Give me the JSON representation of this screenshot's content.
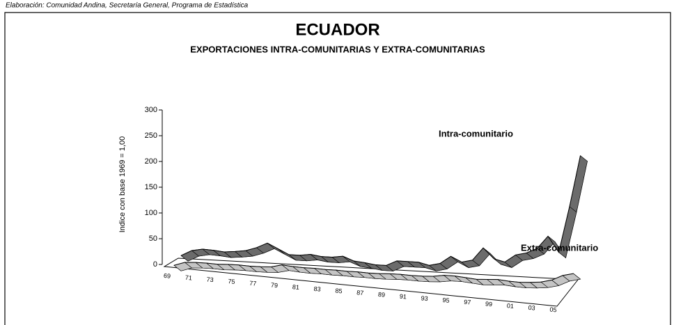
{
  "caption": "Elaboración: Comunidad Andina, Secretaría General, Programa de Estadística",
  "chart_data": {
    "type": "line",
    "title": "ECUADOR",
    "subtitle": "EXPORTACIONES INTRA-COMUNITARIAS  Y EXTRA-COMUNITARIAS",
    "y_label": "Indice con base 1969 = 1,00",
    "categories": [
      "69",
      null,
      "71",
      null,
      "73",
      null,
      "75",
      null,
      "77",
      null,
      "79",
      null,
      "81",
      null,
      "83",
      null,
      "85",
      null,
      "87",
      null,
      "89",
      null,
      "91",
      null,
      "93",
      null,
      "95",
      null,
      "97",
      null,
      "99",
      null,
      "01",
      null,
      "03",
      null,
      "05",
      null
    ],
    "series": [
      {
        "name": "Intra-comunitario",
        "color": "#6b6b6b",
        "values": [
          1,
          12,
          16,
          15,
          13,
          15,
          18,
          25,
          35,
          25,
          15,
          15,
          18,
          15,
          15,
          18,
          10,
          8,
          5,
          5,
          15,
          15,
          15,
          10,
          15,
          30,
          20,
          25,
          50,
          30,
          25,
          40,
          45,
          55,
          80,
          50,
          140,
          240
        ]
      },
      {
        "name": "Extra-comunitario",
        "color": "#c4c4c4",
        "values": [
          1,
          8,
          9,
          9,
          8,
          9,
          9,
          8,
          8,
          9,
          14,
          12,
          11,
          11,
          10,
          10,
          9,
          9,
          8,
          8,
          9,
          9,
          8,
          8,
          9,
          12,
          12,
          10,
          8,
          9,
          10,
          8,
          7,
          8,
          10,
          15,
          25,
          30
        ]
      }
    ],
    "ylim": [
      0,
      300
    ],
    "yticks": [
      0,
      50,
      100,
      150,
      200,
      250,
      300
    ]
  }
}
